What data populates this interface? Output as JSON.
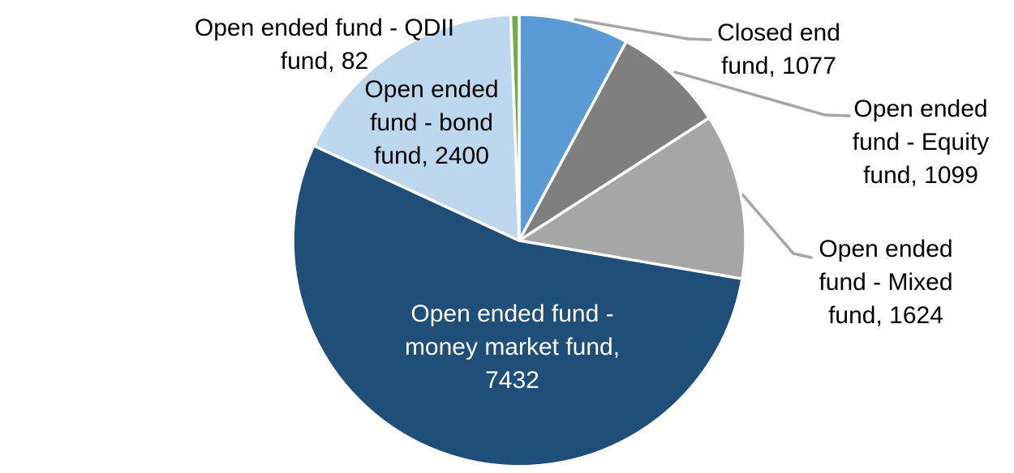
{
  "chart_data": {
    "type": "pie",
    "title": "",
    "start_angle_deg": 0,
    "direction": "clockwise",
    "legend_position": "none",
    "data_label_format": "category, value",
    "slices": [
      {
        "label": "Closed end fund",
        "value": 1077,
        "color": "#5B9BD5",
        "label_placement": "outside-right",
        "leader_line": true,
        "label_lines": [
          "Closed end",
          "fund, 1077"
        ]
      },
      {
        "label": "Open ended fund - Equity fund",
        "value": 1099,
        "color": "#7F7F7F",
        "label_placement": "outside-right",
        "leader_line": true,
        "label_lines": [
          "Open ended",
          "fund - Equity",
          "fund, 1099"
        ]
      },
      {
        "label": "Open ended fund - Mixed fund",
        "value": 1624,
        "color": "#A6A6A6",
        "label_placement": "outside-right",
        "leader_line": true,
        "label_lines": [
          "Open ended",
          "fund - Mixed",
          "fund, 1624"
        ]
      },
      {
        "label": "Open ended fund - money market fund",
        "value": 7432,
        "color": "#1F4E79",
        "label_placement": "inside",
        "leader_line": false,
        "label_lines": [
          "Open ended fund -",
          "money market fund,",
          "7432"
        ]
      },
      {
        "label": "Open ended fund - bond fund",
        "value": 2400,
        "color": "#BDD7EE",
        "label_placement": "inside-top",
        "leader_line": false,
        "label_lines": [
          "Open ended",
          "fund - bond",
          "fund, 2400"
        ]
      },
      {
        "label": "Open ended fund - QDII fund",
        "value": 82,
        "color": "#70AD47",
        "label_placement": "outside-top-left",
        "leader_line": false,
        "label_lines": [
          "Open ended fund - QDII",
          "fund, 82"
        ]
      }
    ],
    "colors": {
      "leader_line": "#A6A6A6",
      "slice_border": "#FFFFFF",
      "label_text": "#000000",
      "inside_label_text": "#FFFFFF"
    }
  }
}
